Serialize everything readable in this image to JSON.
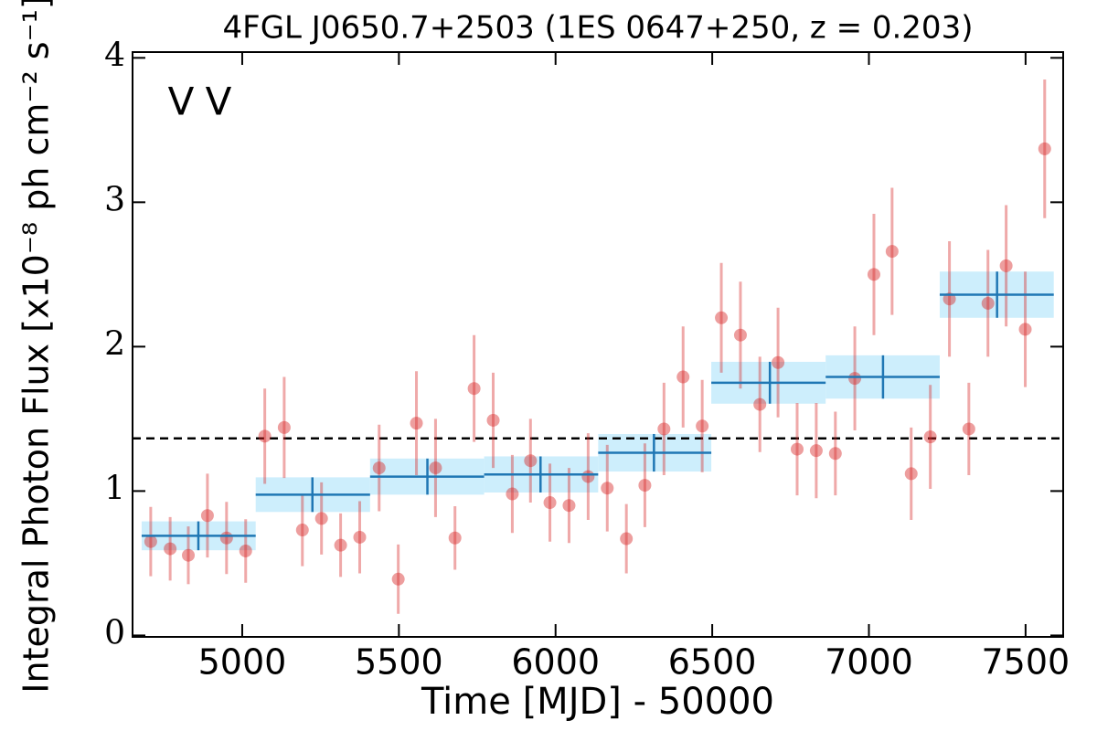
{
  "chart_data": {
    "type": "scatter",
    "title": "4FGL J0650.7+2503 (1ES 0647+250, z = 0.203)",
    "x_label": "Time [MJD] - 50000",
    "y_label": "Integral Photon Flux [x10⁻⁸ ph cm⁻² s⁻¹]",
    "xlim": [
      4650,
      7620
    ],
    "ylim": [
      -0.01,
      4.04
    ],
    "xticks": [
      5000,
      5500,
      6000,
      6500,
      7000,
      7500
    ],
    "yticks": [
      0,
      1,
      2,
      3,
      4
    ],
    "hline": 1.365,
    "series": [
      {
        "name": "V",
        "color": "#1f77b4",
        "box_color": "#cdeefc",
        "x_lo": [
          4679,
          5043,
          5408,
          5772,
          6136,
          6497,
          6862,
          7226
        ],
        "x_hi": [
          5043,
          5408,
          5772,
          6136,
          6497,
          6862,
          7226,
          7590
        ],
        "x": [
          4860,
          5224,
          5591,
          5952,
          6314,
          6684,
          7045,
          7409
        ],
        "values": [
          0.69,
          0.975,
          1.1,
          1.115,
          1.265,
          1.75,
          1.79,
          2.36
        ],
        "errors": [
          0.1,
          0.12,
          0.125,
          0.125,
          0.13,
          0.145,
          0.15,
          0.16
        ]
      },
      {
        "name": "V",
        "color": "#d62728",
        "x": [
          4708,
          4770,
          4828,
          4889,
          4950,
          5011,
          5072,
          5134,
          5192,
          5253,
          5314,
          5375,
          5437,
          5498,
          5556,
          5617,
          5679,
          5740,
          5801,
          5862,
          5920,
          5982,
          6043,
          6104,
          6165,
          6226,
          6285,
          6346,
          6407,
          6468,
          6529,
          6590,
          6652,
          6710,
          6771,
          6832,
          6893,
          6955,
          7016,
          7074,
          7135,
          7196,
          7257,
          7319,
          7380,
          7438,
          7499,
          7561
        ],
        "values": [
          0.65,
          0.6,
          0.555,
          0.83,
          0.675,
          0.585,
          1.38,
          1.44,
          0.73,
          0.81,
          0.625,
          0.68,
          1.16,
          0.39,
          1.47,
          1.16,
          0.675,
          1.71,
          1.49,
          0.98,
          1.21,
          0.92,
          0.9,
          1.1,
          1.02,
          0.67,
          1.04,
          1.43,
          1.79,
          1.45,
          2.2,
          2.08,
          1.6,
          1.89,
          1.29,
          1.28,
          1.26,
          1.78,
          2.5,
          2.66,
          1.12,
          1.375,
          2.33,
          1.43,
          2.3,
          2.56,
          2.12,
          3.37
        ],
        "errors": [
          0.24,
          0.22,
          0.2,
          0.29,
          0.25,
          0.22,
          0.33,
          0.35,
          0.25,
          0.25,
          0.22,
          0.25,
          0.3,
          0.24,
          0.36,
          0.34,
          0.22,
          0.37,
          0.33,
          0.27,
          0.29,
          0.27,
          0.26,
          0.3,
          0.3,
          0.24,
          0.29,
          0.32,
          0.35,
          0.32,
          0.38,
          0.37,
          0.33,
          0.38,
          0.32,
          0.33,
          0.29,
          0.36,
          0.42,
          0.44,
          0.32,
          0.36,
          0.4,
          0.32,
          0.37,
          0.42,
          0.4,
          0.48
        ]
      }
    ]
  }
}
